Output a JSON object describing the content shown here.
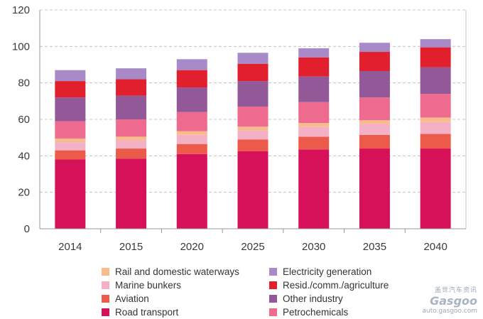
{
  "chart_data": {
    "type": "bar",
    "stacked": true,
    "categories": [
      "2014",
      "2015",
      "2020",
      "2025",
      "2030",
      "2035",
      "2040"
    ],
    "ylim": [
      0,
      120
    ],
    "yticks": [
      0,
      20,
      40,
      60,
      80,
      100,
      120
    ],
    "grid": "horizontal dashed",
    "legend_position": "bottom",
    "series": [
      {
        "name": "Road transport",
        "color": "#d6115a",
        "values": [
          38,
          38.5,
          41,
          42.5,
          43.5,
          44,
          44
        ]
      },
      {
        "name": "Aviation",
        "color": "#ec5a4a",
        "values": [
          5,
          5.5,
          5.5,
          6.5,
          7,
          7.5,
          8
        ]
      },
      {
        "name": "Marine bunkers",
        "color": "#f4b1c6",
        "values": [
          4.5,
          4.5,
          5,
          5,
          5.5,
          6,
          6.5
        ]
      },
      {
        "name": "Rail and domestic waterways",
        "color": "#f8bb8a",
        "values": [
          2,
          2,
          2,
          2,
          2,
          2,
          2.5
        ]
      },
      {
        "name": "Petrochemicals",
        "color": "#ef6a8f",
        "values": [
          9.5,
          9.5,
          10.5,
          11,
          11.5,
          12.5,
          13
        ]
      },
      {
        "name": "Other industry",
        "color": "#925897",
        "values": [
          13,
          13,
          13.5,
          14,
          14,
          14.5,
          14.5
        ]
      },
      {
        "name": "Resid./comm./agriculture",
        "color": "#e21f2d",
        "values": [
          9,
          9,
          9.5,
          9.5,
          10.5,
          10.5,
          11
        ]
      },
      {
        "name": "Electricity generation",
        "color": "#a98ac8",
        "values": [
          6,
          6,
          6,
          6,
          5,
          5,
          4.5
        ]
      }
    ]
  },
  "legend": {
    "left": [
      {
        "label": "Rail and domestic waterways",
        "color": "#f8bb8a"
      },
      {
        "label": "Marine bunkers",
        "color": "#f4b1c6"
      },
      {
        "label": "Aviation",
        "color": "#ec5a4a"
      },
      {
        "label": "Road transport",
        "color": "#d6115a"
      }
    ],
    "right": [
      {
        "label": "Electricity generation",
        "color": "#a98ac8"
      },
      {
        "label": "Resid./comm./agriculture",
        "color": "#e21f2d"
      },
      {
        "label": "Other industry",
        "color": "#925897"
      },
      {
        "label": "Petrochemicals",
        "color": "#ef6a8f"
      }
    ]
  },
  "watermark": {
    "chinese": "盖世汽车资讯",
    "logo": "Gasgoo",
    "url": "auto.gasgoo.com"
  }
}
